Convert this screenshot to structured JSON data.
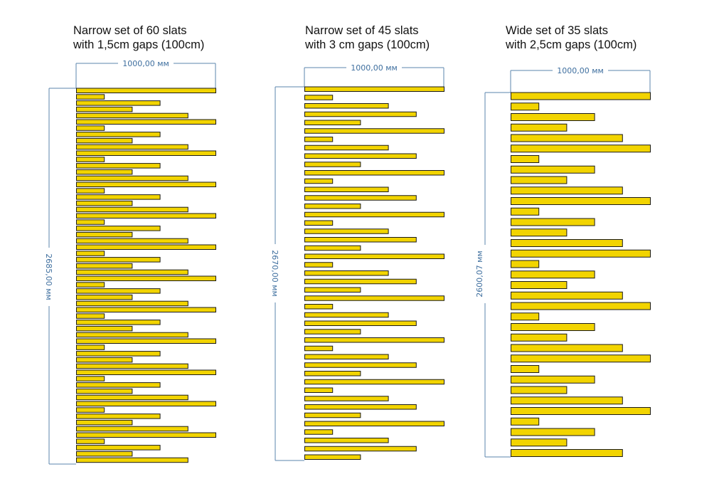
{
  "colors": {
    "slat_fill": "#f2d400",
    "slat_stroke": "#1a1a1a",
    "dimension_line": "#5b86ad",
    "dimension_text": "#3f6f9f"
  },
  "sets": [
    {
      "id": "set-60",
      "title_line1": "Narrow set of 60 slats",
      "title_line2": "with 1,5cm gaps (100cm)",
      "width_label": "1000,00 мм",
      "height_label": "2685,00 мм",
      "slat_count": 60,
      "slat_lengths": [
        1,
        0.2,
        0.6,
        0.4,
        0.8,
        1,
        0.2,
        0.6,
        0.4,
        0.8,
        1,
        0.2,
        0.6,
        0.4,
        0.8,
        1,
        0.2,
        0.6,
        0.4,
        0.8,
        1,
        0.2,
        0.6,
        0.4,
        0.8,
        1,
        0.2,
        0.6,
        0.4,
        0.8,
        1,
        0.2,
        0.6,
        0.4,
        0.8,
        1,
        0.2,
        0.6,
        0.4,
        0.8,
        1,
        0.2,
        0.6,
        0.4,
        0.8,
        1,
        0.2,
        0.6,
        0.4,
        0.8,
        1,
        0.2,
        0.6,
        0.4,
        0.8,
        1,
        0.2,
        0.6,
        0.4,
        0.8
      ]
    },
    {
      "id": "set-45",
      "title_line1": "Narrow set of 45 slats",
      "title_line2": "with 3 cm gaps (100cm)",
      "width_label": "1000,00 мм",
      "height_label": "2670,00 мм",
      "slat_count": 45,
      "slat_lengths": [
        1,
        0.2,
        0.6,
        0.8,
        0.4,
        1,
        0.2,
        0.6,
        0.8,
        0.4,
        1,
        0.2,
        0.6,
        0.8,
        0.4,
        1,
        0.2,
        0.6,
        0.8,
        0.4,
        1,
        0.2,
        0.6,
        0.8,
        0.4,
        1,
        0.2,
        0.6,
        0.8,
        0.4,
        1,
        0.2,
        0.6,
        0.8,
        0.4,
        1,
        0.2,
        0.6,
        0.8,
        0.4,
        1,
        0.2,
        0.6,
        0.8,
        0.4
      ]
    },
    {
      "id": "set-35",
      "title_line1": "Wide set of 35 slats",
      "title_line2": "with 2,5cm gaps  (100cm)",
      "width_label": "1000,00 мм",
      "height_label": "2600,07 мм",
      "slat_count": 35,
      "slat_lengths": [
        1,
        0.2,
        0.6,
        0.4,
        0.8,
        1,
        0.2,
        0.6,
        0.4,
        0.8,
        1,
        0.2,
        0.6,
        0.4,
        0.8,
        1,
        0.2,
        0.6,
        0.4,
        0.8,
        1,
        0.2,
        0.6,
        0.4,
        0.8,
        1,
        0.2,
        0.6,
        0.4,
        0.8,
        1,
        0.2,
        0.6,
        0.4,
        0.8
      ]
    }
  ]
}
